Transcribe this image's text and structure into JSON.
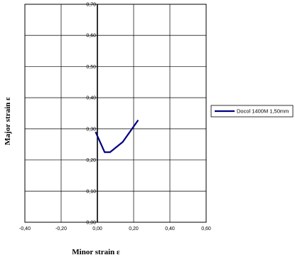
{
  "chart_data": {
    "type": "line",
    "title": "",
    "xlabel": "Minor strain ε",
    "ylabel": "Major strain ε",
    "xlim": [
      -0.4,
      0.6
    ],
    "ylim": [
      0.0,
      0.7
    ],
    "x_ticks": [
      -0.4,
      -0.2,
      0.0,
      0.2,
      0.4,
      0.6
    ],
    "x_tick_labels": [
      "-0,40",
      "-0,20",
      "0,00",
      "0,20",
      "0,40",
      "0,60"
    ],
    "y_ticks": [
      0.0,
      0.1,
      0.2,
      0.3,
      0.4,
      0.5,
      0.6,
      0.7
    ],
    "y_tick_labels": [
      "0,00",
      "0,10",
      "0,20",
      "0,30",
      "0,40",
      "0,50",
      "0,60",
      "0,70"
    ],
    "grid": true,
    "legend_position": "right",
    "series": [
      {
        "name": "Docol 1400M 1,50mm",
        "color": "#000080",
        "points": [
          {
            "x": -0.01,
            "y": 0.29
          },
          {
            "x": 0.04,
            "y": 0.225
          },
          {
            "x": 0.07,
            "y": 0.225
          },
          {
            "x": 0.14,
            "y": 0.258
          },
          {
            "x": 0.225,
            "y": 0.328
          }
        ]
      }
    ]
  }
}
